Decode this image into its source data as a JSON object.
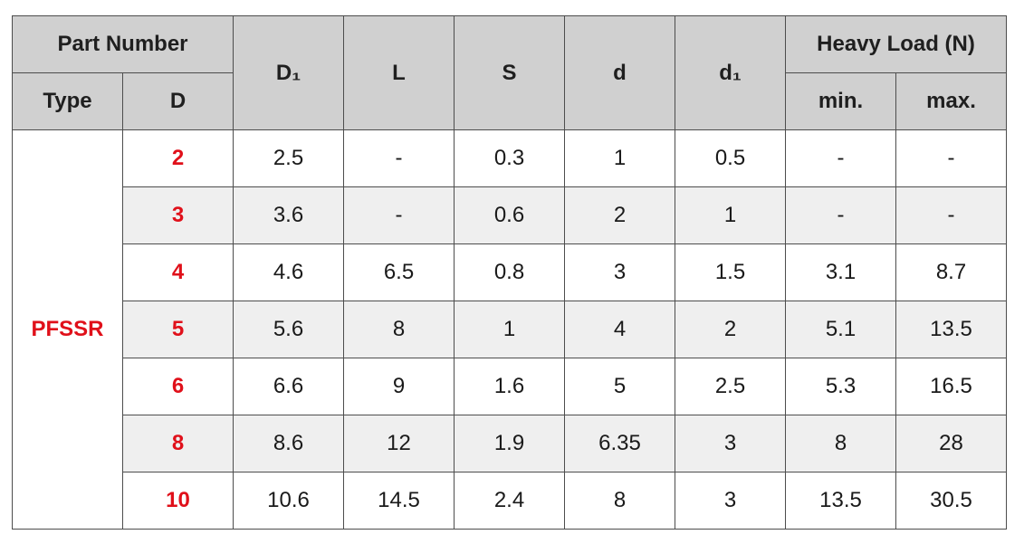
{
  "header": {
    "part_number": "Part Number",
    "type": "Type",
    "d_upper": "D",
    "d1_upper": "D₁",
    "l": "L",
    "s": "S",
    "d_lower": "d",
    "d1_lower": "d₁",
    "heavy_load": "Heavy Load (N)",
    "min": "min.",
    "max": "max."
  },
  "type_value": "PFSSR",
  "accent_color": "#e0101a",
  "rows": [
    {
      "D": "2",
      "D1": "2.5",
      "L": "-",
      "S": "0.3",
      "d": "1",
      "d1": "0.5",
      "min": "-",
      "max": "-"
    },
    {
      "D": "3",
      "D1": "3.6",
      "L": "-",
      "S": "0.6",
      "d": "2",
      "d1": "1",
      "min": "-",
      "max": "-"
    },
    {
      "D": "4",
      "D1": "4.6",
      "L": "6.5",
      "S": "0.8",
      "d": "3",
      "d1": "1.5",
      "min": "3.1",
      "max": "8.7"
    },
    {
      "D": "5",
      "D1": "5.6",
      "L": "8",
      "S": "1",
      "d": "4",
      "d1": "2",
      "min": "5.1",
      "max": "13.5"
    },
    {
      "D": "6",
      "D1": "6.6",
      "L": "9",
      "S": "1.6",
      "d": "5",
      "d1": "2.5",
      "min": "5.3",
      "max": "16.5"
    },
    {
      "D": "8",
      "D1": "8.6",
      "L": "12",
      "S": "1.9",
      "d": "6.35",
      "d1": "3",
      "min": "8",
      "max": "28"
    },
    {
      "D": "10",
      "D1": "10.6",
      "L": "14.5",
      "S": "2.4",
      "d": "8",
      "d1": "3",
      "min": "13.5",
      "max": "30.5"
    }
  ]
}
